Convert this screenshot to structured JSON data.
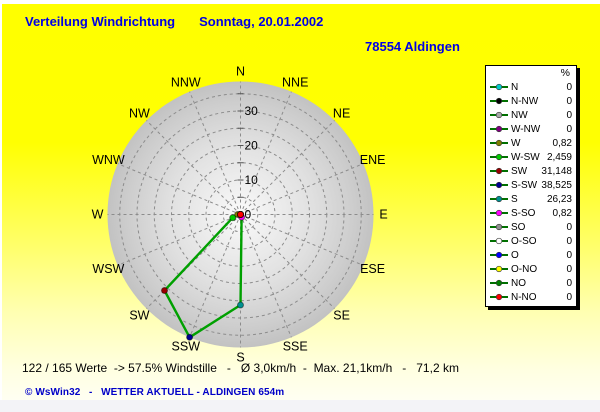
{
  "header": {
    "title": "Verteilung Windrichtung",
    "date": "Sonntag, 20.01.2002",
    "station": "78554 Aldingen"
  },
  "colors": {
    "background_top": "#FFFF00",
    "background_bottom": "#FFFFF2",
    "title_blue": "#0000E6",
    "footer_blue": "#0000C8",
    "chart_line_green": "#00A000",
    "legend_marker_line": "#007000",
    "disc_outer_gray": "#C2C2C2"
  },
  "chart_data": {
    "type": "line",
    "subtype": "polar-wind-rose",
    "units": "%",
    "angular_axis": {
      "compass_labels": [
        "N",
        "NNE",
        "NE",
        "ENE",
        "E",
        "ESE",
        "SE",
        "SSE",
        "S",
        "SSW",
        "SW",
        "WSW",
        "W",
        "WNW",
        "NW",
        "NNW"
      ],
      "start": "N",
      "clockwise": true
    },
    "radial_axis": {
      "tick_labels": [
        0,
        10,
        20,
        30
      ],
      "ring_step": 5,
      "max": 38.525
    },
    "line_color": "#00A000",
    "points": [
      {
        "label": "N",
        "angle_deg": 0,
        "value": 0,
        "display": "0",
        "color": "#00CCCC"
      },
      {
        "label": "N-NW",
        "angle_deg": 337.5,
        "value": 0,
        "display": "0",
        "color": "#000000"
      },
      {
        "label": "NW",
        "angle_deg": 315,
        "value": 0,
        "display": "0",
        "color": "#A8A8A8"
      },
      {
        "label": "W-NW",
        "angle_deg": 292.5,
        "value": 0,
        "display": "0",
        "color": "#800080"
      },
      {
        "label": "W",
        "angle_deg": 270,
        "value": 0.82,
        "display": "0,82",
        "color": "#808000"
      },
      {
        "label": "W-SW",
        "angle_deg": 247.5,
        "value": 2.459,
        "display": "2,459",
        "color": "#00CC00"
      },
      {
        "label": "SW",
        "angle_deg": 225,
        "value": 31.148,
        "display": "31,148",
        "color": "#990000"
      },
      {
        "label": "S-SW",
        "angle_deg": 202.5,
        "value": 38.525,
        "display": "38,525",
        "color": "#000090"
      },
      {
        "label": "S",
        "angle_deg": 180,
        "value": 26.23,
        "display": "26,23",
        "color": "#009090"
      },
      {
        "label": "S-SO",
        "angle_deg": 157.5,
        "value": 0.82,
        "display": "0,82",
        "color": "#FF00FF"
      },
      {
        "label": "SO",
        "angle_deg": 135,
        "value": 0,
        "display": "0",
        "color": "#909090"
      },
      {
        "label": "O-SO",
        "angle_deg": 112.5,
        "value": 0,
        "display": "0",
        "color": "#FFFFFF"
      },
      {
        "label": "O",
        "angle_deg": 90,
        "value": 0,
        "display": "0",
        "color": "#0000FF"
      },
      {
        "label": "O-NO",
        "angle_deg": 67.5,
        "value": 0,
        "display": "0",
        "color": "#FFFF00"
      },
      {
        "label": "NO",
        "angle_deg": 45,
        "value": 0,
        "display": "0",
        "color": "#008000"
      },
      {
        "label": "N-NO",
        "angle_deg": 22.5,
        "value": 0,
        "display": "0",
        "color": "#FF0000"
      }
    ]
  },
  "legend": {
    "header": "%",
    "marker_line_color": "#007000"
  },
  "status_bar": {
    "text": "122 / 165 Werte  -> 57.5% Windstille   -   Ø 3,0km/h  -  Max. 21,1km/h   -   71,2 km"
  },
  "footer": {
    "text": "© WsWin32   -   WETTER AKTUELL - ALDINGEN 654m"
  }
}
